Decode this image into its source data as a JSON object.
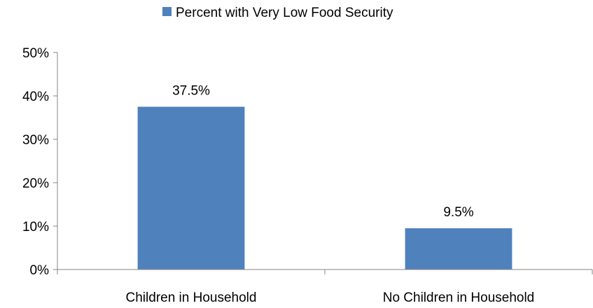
{
  "chart_data": {
    "type": "bar",
    "categories": [
      "Children in Household",
      "No Children in Household"
    ],
    "series": [
      {
        "name": "Percent with Very Low Food Security",
        "values": [
          37.5,
          9.5
        ],
        "labels": [
          "37.5%",
          "9.5%"
        ]
      }
    ],
    "yticks": [
      "0%",
      "10%",
      "20%",
      "30%",
      "40%",
      "50%"
    ],
    "ylim": [
      0,
      50
    ],
    "legend_position": "top",
    "grid": false,
    "bar_color": "#4F81BD",
    "axis_color": "#868686"
  }
}
